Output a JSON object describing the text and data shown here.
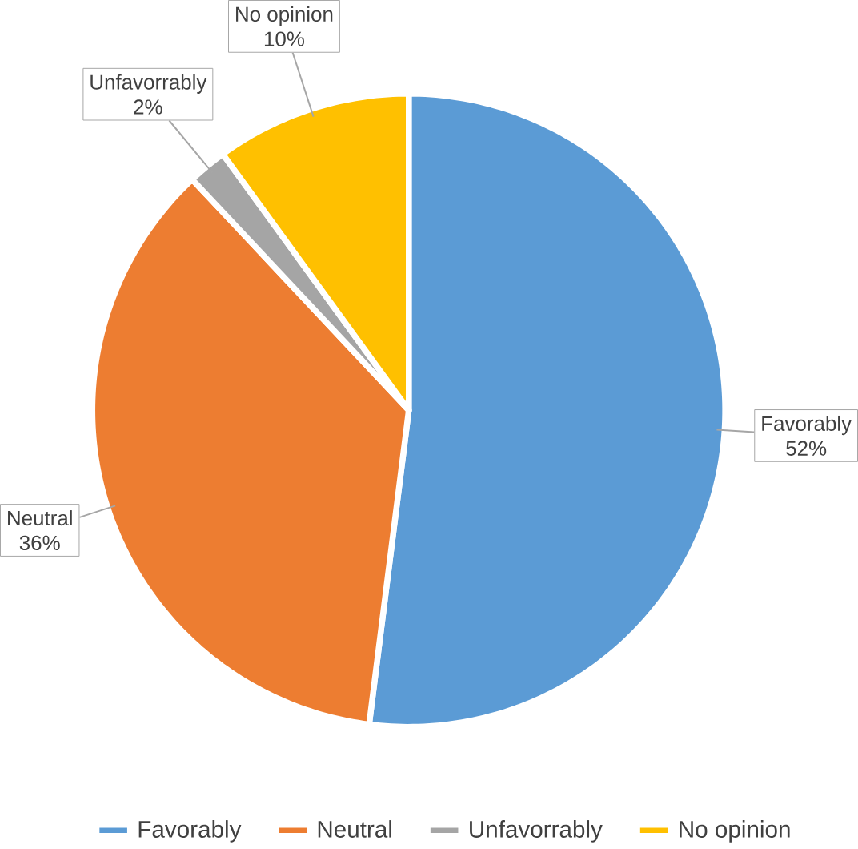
{
  "chart_data": {
    "type": "pie",
    "categories": [
      "Favorably",
      "Neutral",
      "Unfavorrably",
      "No opinion"
    ],
    "values": [
      52,
      36,
      2,
      10
    ],
    "value_labels": [
      "52%",
      "36%",
      "2%",
      "10%"
    ],
    "colors": [
      "#5b9bd5",
      "#ed7d31",
      "#a5a5a5",
      "#ffc000"
    ],
    "data_labels": true,
    "legend": "bottom"
  }
}
